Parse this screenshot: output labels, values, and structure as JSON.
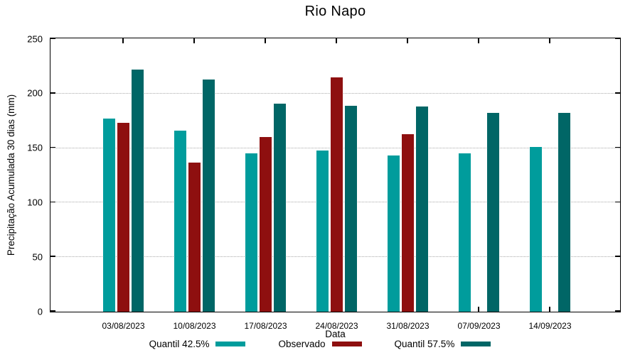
{
  "chart_data": {
    "type": "bar",
    "title": "Rio Napo",
    "xlabel": "Data",
    "ylabel": "Precipitação Acumulada 30 dias (mm)",
    "ylim": [
      0,
      250
    ],
    "yticks": [
      0,
      50,
      100,
      150,
      200,
      250
    ],
    "grid_values": [
      50,
      100,
      150,
      200
    ],
    "grid": true,
    "legend_position": "bottom",
    "categories": [
      "03/08/2023",
      "10/08/2023",
      "17/08/2023",
      "24/08/2023",
      "31/08/2023",
      "07/09/2023",
      "14/09/2023"
    ],
    "series": [
      {
        "name": "Quantil 42.5%",
        "color": "#009c9c",
        "values": [
          177,
          166,
          145,
          148,
          143,
          145,
          151
        ]
      },
      {
        "name": "Observado",
        "color": "#8e0f0f",
        "values": [
          173,
          137,
          160,
          215,
          163,
          null,
          null
        ]
      },
      {
        "name": "Quantil 57.5%",
        "color": "#006666",
        "values": [
          222,
          213,
          191,
          189,
          188,
          182,
          182
        ]
      }
    ],
    "colors": {
      "axis": "#000000",
      "grid": "#a9a9a9",
      "background": "#ffffff"
    }
  }
}
